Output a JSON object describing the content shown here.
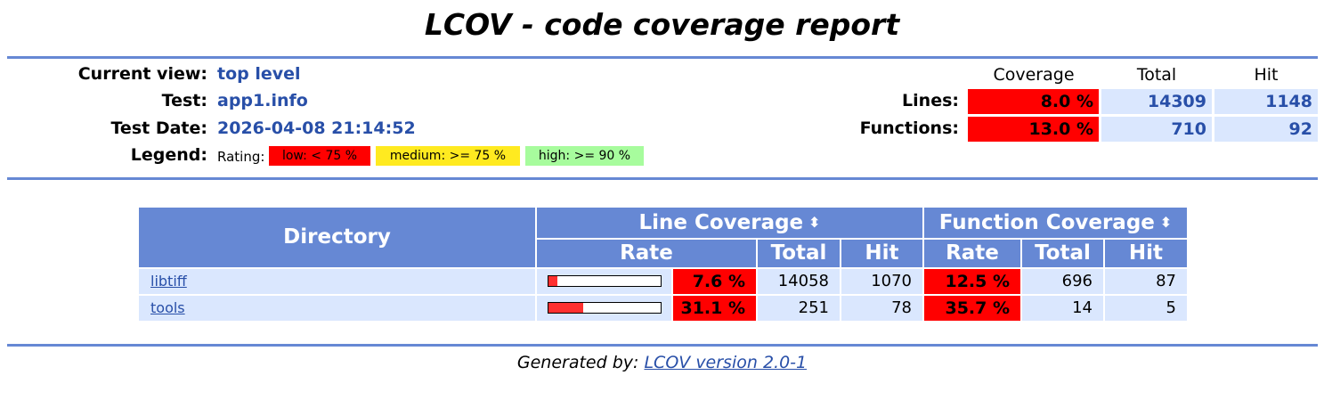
{
  "title": "LCOV - code coverage report",
  "header": {
    "current_view_label": "Current view:",
    "current_view_value": "top level",
    "test_label": "Test:",
    "test_value": "app1.info",
    "test_date_label": "Test Date:",
    "test_date_value": "2026-04-08 21:14:52",
    "legend_label": "Legend:",
    "legend_rating": "Rating:",
    "legend_low": "low: < 75 %",
    "legend_medium": "medium: >= 75 %",
    "legend_high": "high: >= 90 %"
  },
  "summary": {
    "col_coverage": "Coverage",
    "col_total": "Total",
    "col_hit": "Hit",
    "lines_label": "Lines:",
    "lines_rate": "8.0 %",
    "lines_total": "14309",
    "lines_hit": "1148",
    "functions_label": "Functions:",
    "functions_rate": "13.0 %",
    "functions_total": "710",
    "functions_hit": "92"
  },
  "table": {
    "directory_header": "Directory",
    "line_coverage_header": "Line Coverage",
    "function_coverage_header": "Function Coverage",
    "rate_header": "Rate",
    "total_header": "Total",
    "hit_header": "Hit",
    "rows": [
      {
        "name": "libtiff",
        "line_pct": 7.6,
        "line_rate": "7.6 %",
        "line_total": "14058",
        "line_hit": "1070",
        "func_rate": "12.5 %",
        "func_total": "696",
        "func_hit": "87"
      },
      {
        "name": "tools",
        "line_pct": 31.1,
        "line_rate": "31.1 %",
        "line_total": "251",
        "line_hit": "78",
        "func_rate": "35.7 %",
        "func_total": "14",
        "func_hit": "5"
      }
    ]
  },
  "footer": {
    "prefix": "Generated by:",
    "link": "LCOV version 2.0-1"
  },
  "colors": {
    "accent": "#6688d4",
    "low": "#ff0000",
    "medium": "#ffea20",
    "high": "#a7fc9d",
    "row_bg": "#dae7fe"
  }
}
